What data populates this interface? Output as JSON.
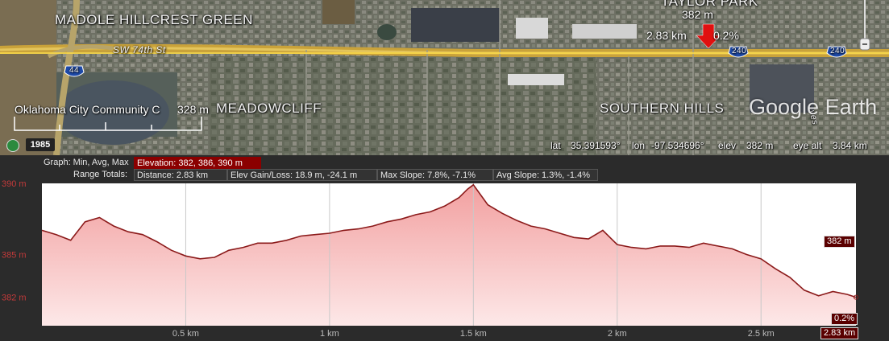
{
  "map": {
    "labels": {
      "madole": "MADOLE HILLCREST GREEN",
      "taylor_park": "TAYLOR PARK",
      "meadowcliff": "MEADOWCLIFF",
      "southern_hills": "SOUTHERN HILLS",
      "sw74": "SW 74th St",
      "occ": "Oklahoma City Community C",
      "i44": "44",
      "i240a": "240",
      "i240b": "240",
      "ves": "ves"
    },
    "cursor_callout": {
      "elevation": "382 m",
      "distance": "2.83 km",
      "slope": "0.2%"
    },
    "scale_elev": "328 m",
    "logo": "Google Earth",
    "imagery_year": "1985",
    "status": {
      "lat_label": "lat",
      "lat_value": "35.391593°",
      "lon_label": "lon",
      "lon_value": "-97.534696°",
      "elev_label": "elev",
      "elev_value": "382 m",
      "eye_label": "eye alt",
      "eye_value": "3.84 km"
    }
  },
  "profile": {
    "graph_label": "Graph: Min, Avg, Max",
    "elevation_box": "Elevation: 382, 386, 390 m",
    "range_label": "Range Totals:",
    "distance_box": "Distance: 2.83 km",
    "gain_box": "Elev Gain/Loss: 18.9 m, -24.1 m",
    "max_slope_box": "Max Slope: 7.8%, -7.1%",
    "avg_slope_box": "Avg Slope: 1.3%, -1.4%",
    "cursor_elev_tag": "382 m",
    "cursor_slope_tag": "0.2%",
    "cursor_dist_tag": "2.83 km",
    "colors": {
      "line": "#8b1a1a",
      "fill_top": "#f2a0a0",
      "fill_bottom": "#fde8e8",
      "tag_bg": "#5a0000"
    }
  },
  "chart_data": {
    "type": "area",
    "xlabel": "",
    "ylabel": "",
    "xlim": [
      0,
      2.83
    ],
    "ylim": [
      380,
      390
    ],
    "x_ticks": [
      "0.5 km",
      "1 km",
      "1.5 km",
      "2 km",
      "2.5 km"
    ],
    "x_tick_values": [
      0.5,
      1.0,
      1.5,
      2.0,
      2.5
    ],
    "y_ticks": [
      "390 m",
      "385 m",
      "382 m"
    ],
    "y_tick_values": [
      390,
      385,
      382
    ],
    "grid": true,
    "x": [
      0,
      0.05,
      0.1,
      0.15,
      0.2,
      0.25,
      0.3,
      0.35,
      0.4,
      0.45,
      0.5,
      0.55,
      0.6,
      0.65,
      0.7,
      0.75,
      0.8,
      0.85,
      0.9,
      0.95,
      1.0,
      1.05,
      1.1,
      1.15,
      1.2,
      1.25,
      1.3,
      1.35,
      1.4,
      1.45,
      1.48,
      1.5,
      1.55,
      1.6,
      1.65,
      1.7,
      1.75,
      1.8,
      1.85,
      1.9,
      1.95,
      2.0,
      2.05,
      2.1,
      2.15,
      2.2,
      2.25,
      2.3,
      2.35,
      2.4,
      2.45,
      2.5,
      2.55,
      2.6,
      2.65,
      2.7,
      2.75,
      2.8,
      2.83
    ],
    "series": [
      {
        "values": [
          386.7,
          386.4,
          386.0,
          387.3,
          387.6,
          387.0,
          386.6,
          386.4,
          385.9,
          385.3,
          384.9,
          384.7,
          384.8,
          385.3,
          385.5,
          385.8,
          385.8,
          386.0,
          386.3,
          386.4,
          386.5,
          386.7,
          386.8,
          387.0,
          387.3,
          387.5,
          387.8,
          388.0,
          388.4,
          389.0,
          389.6,
          389.9,
          388.5,
          387.9,
          387.4,
          387.0,
          386.8,
          386.5,
          386.2,
          386.1,
          386.7,
          385.7,
          385.5,
          385.4,
          385.6,
          385.6,
          385.5,
          385.8,
          385.6,
          385.4,
          385.0,
          384.7,
          384.0,
          383.4,
          382.5,
          382.1,
          382.4,
          382.2,
          382.0
        ]
      }
    ]
  }
}
